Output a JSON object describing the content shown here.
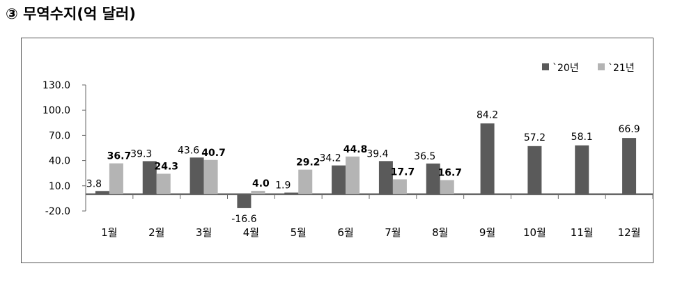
{
  "title": "③ 무역수지(억 달러)",
  "colors": {
    "s2020": "#5a5a5a",
    "s2021": "#b4b4b4",
    "axis": "#666666"
  },
  "chart_data": {
    "type": "bar",
    "title": "③ 무역수지(억 달러)",
    "xlabel": "",
    "ylabel": "",
    "ylim": [
      -20,
      130
    ],
    "yticks": [
      -20.0,
      10.0,
      40.0,
      70.0,
      100.0,
      130.0
    ],
    "ytick_labels": [
      "-20.0",
      "10.0",
      "40.0",
      "70.0",
      "100.0",
      "130.0"
    ],
    "categories": [
      "1월",
      "2월",
      "3월",
      "4월",
      "5월",
      "6월",
      "7월",
      "8월",
      "9월",
      "10월",
      "11월",
      "12월"
    ],
    "legend_position": "top-right",
    "grid": false,
    "series": [
      {
        "name": "`20년",
        "values": [
          3.8,
          39.3,
          43.6,
          -16.6,
          1.9,
          34.2,
          39.4,
          36.5,
          84.2,
          57.2,
          58.1,
          66.9
        ],
        "labels": [
          "3.8",
          "39.3",
          "43.6",
          "-16.6",
          "1.9",
          "34.2",
          "39.4",
          "36.5",
          "84.2",
          "57.2",
          "58.1",
          "66.9"
        ]
      },
      {
        "name": "`21년",
        "values": [
          36.7,
          24.3,
          40.7,
          4.0,
          29.2,
          44.8,
          17.7,
          16.7,
          null,
          null,
          null,
          null
        ],
        "labels": [
          "36.7",
          "24.3",
          "40.7",
          "4.0",
          "29.2",
          "44.8",
          "17.7",
          "16.7",
          null,
          null,
          null,
          null
        ]
      }
    ]
  }
}
